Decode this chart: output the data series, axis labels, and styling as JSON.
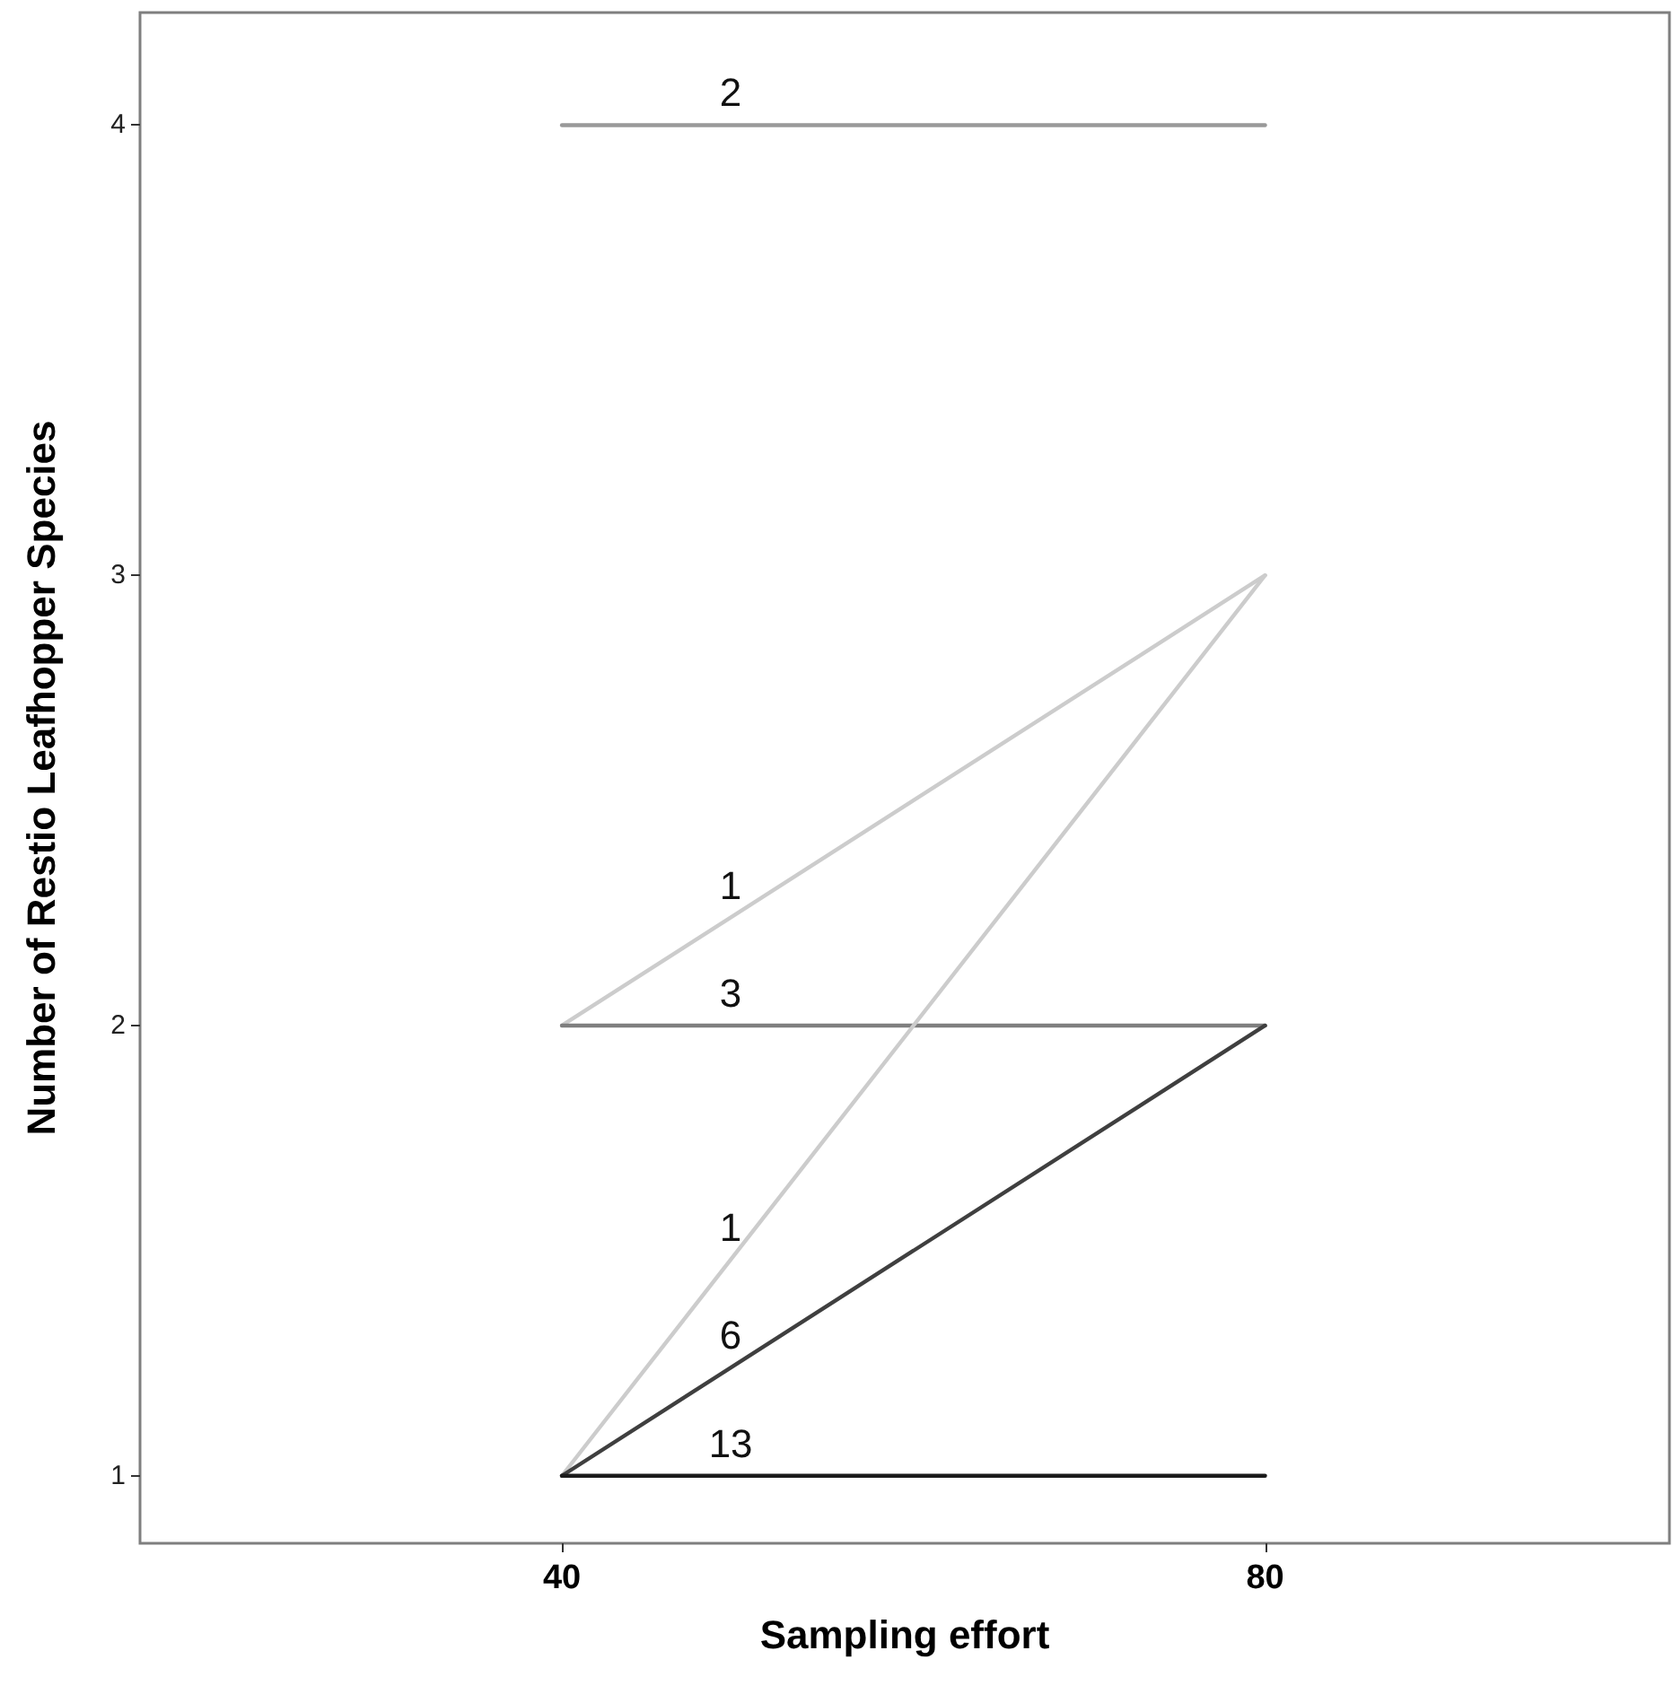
{
  "chart_data": {
    "type": "line",
    "xlabel": "Sampling effort",
    "ylabel": "Number of Restio Leafhopper Species",
    "x": [
      40,
      80
    ],
    "xlim": [
      16,
      103
    ],
    "xticks": [
      40,
      80
    ],
    "ylim": [
      0.85,
      4.25
    ],
    "yticks": [
      1,
      2,
      3,
      4
    ],
    "marker": "none",
    "line_style": "solid",
    "series": [
      {
        "name": "2",
        "values": [
          4,
          4
        ],
        "color": "#999999"
      },
      {
        "name": "1",
        "values": [
          2,
          3
        ],
        "color": "#cccccc"
      },
      {
        "name": "3",
        "values": [
          2,
          2
        ],
        "color": "#7f7f7f"
      },
      {
        "name": "1",
        "values": [
          1,
          3
        ],
        "color": "#cccccc"
      },
      {
        "name": "6",
        "values": [
          1,
          2
        ],
        "color": "#3f3f3f"
      },
      {
        "name": "13",
        "values": [
          1,
          1
        ],
        "color": "#1a1a1a"
      }
    ]
  }
}
